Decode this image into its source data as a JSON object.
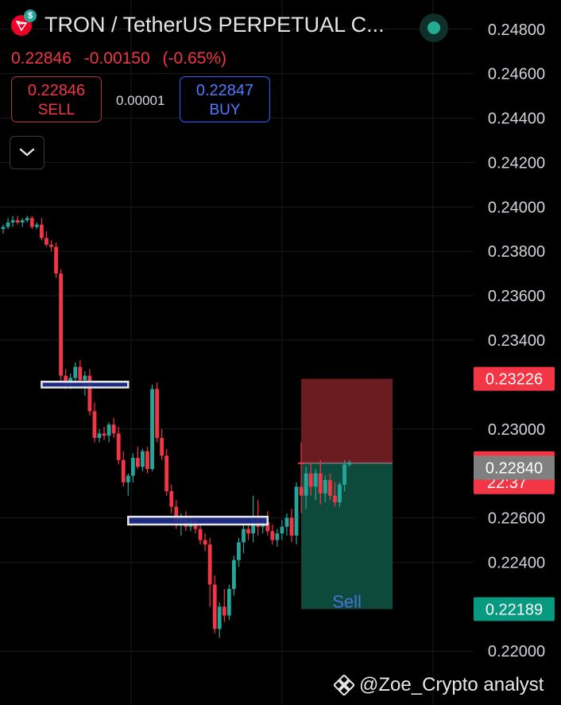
{
  "header": {
    "title": "TRON / TetherUS PERPETUAL C...",
    "coin_badge": "$",
    "last_price": "0.22846",
    "change": "-0.00150",
    "change_pct": "(-0.65%)"
  },
  "trade": {
    "sell_price": "0.22846",
    "sell_label": "SELL",
    "spread": "0.00001",
    "buy_price": "0.22847",
    "buy_label": "BUY"
  },
  "watermark": "@Zoe_Crypto analyst",
  "icons": {
    "coin": "tron-logo-icon",
    "collapse": "chevron-down-icon",
    "status": "market-status-icon",
    "watermark": "binance-logo-icon"
  },
  "colors": {
    "up": "#26a69a",
    "down": "#f23645",
    "stop_zone": "#6b1c21",
    "target_zone": "#0e4a3c",
    "buy_accent": "#2962ff"
  },
  "chart_data": {
    "type": "candlestick",
    "ylim": [
      0.2199,
      0.2481
    ],
    "y_ticks": [
      "0.24800",
      "0.24600",
      "0.24400",
      "0.24200",
      "0.24000",
      "0.23800",
      "0.23600",
      "0.23400",
      "0.23000",
      "0.22600",
      "0.22400",
      "0.22000"
    ],
    "grid": true,
    "candles": [
      [
        0.239,
        0.2392,
        0.2388,
        0.2391
      ],
      [
        0.2391,
        0.2395,
        0.239,
        0.2393
      ],
      [
        0.2393,
        0.2396,
        0.2391,
        0.2394
      ],
      [
        0.2394,
        0.2396,
        0.2392,
        0.2393
      ],
      [
        0.2393,
        0.2395,
        0.2391,
        0.2394
      ],
      [
        0.2394,
        0.2396,
        0.2393,
        0.2395
      ],
      [
        0.2395,
        0.2396,
        0.239,
        0.2391
      ],
      [
        0.2391,
        0.2393,
        0.239,
        0.2392
      ],
      [
        0.2392,
        0.2395,
        0.2385,
        0.2386
      ],
      [
        0.2386,
        0.2389,
        0.2382,
        0.2383
      ],
      [
        0.2383,
        0.2385,
        0.238,
        0.2382
      ],
      [
        0.2382,
        0.2384,
        0.2368,
        0.237
      ],
      [
        0.237,
        0.2372,
        0.232,
        0.2324
      ],
      [
        0.2324,
        0.2327,
        0.2318,
        0.232
      ],
      [
        0.232,
        0.2325,
        0.2318,
        0.2323
      ],
      [
        0.2323,
        0.233,
        0.232,
        0.2328
      ],
      [
        0.2328,
        0.2331,
        0.232,
        0.2322
      ],
      [
        0.2322,
        0.2326,
        0.2315,
        0.2324
      ],
      [
        0.2324,
        0.2327,
        0.2306,
        0.2308
      ],
      [
        0.2308,
        0.2312,
        0.2294,
        0.2296
      ],
      [
        0.2296,
        0.23,
        0.2294,
        0.2298
      ],
      [
        0.2298,
        0.2301,
        0.2295,
        0.2297
      ],
      [
        0.2297,
        0.2303,
        0.2294,
        0.2302
      ],
      [
        0.2302,
        0.2305,
        0.2296,
        0.2298
      ],
      [
        0.2298,
        0.2301,
        0.2284,
        0.2286
      ],
      [
        0.2286,
        0.229,
        0.2274,
        0.2276
      ],
      [
        0.2276,
        0.228,
        0.227,
        0.2279
      ],
      [
        0.2279,
        0.2289,
        0.2276,
        0.2287
      ],
      [
        0.2287,
        0.2292,
        0.2282,
        0.2283
      ],
      [
        0.2283,
        0.2291,
        0.2281,
        0.229
      ],
      [
        0.229,
        0.2292,
        0.228,
        0.2282
      ],
      [
        0.2282,
        0.232,
        0.2281,
        0.2318
      ],
      [
        0.2318,
        0.2321,
        0.2294,
        0.2296
      ],
      [
        0.2296,
        0.23,
        0.2286,
        0.2288
      ],
      [
        0.2288,
        0.2291,
        0.227,
        0.2272
      ],
      [
        0.2272,
        0.2275,
        0.2262,
        0.2265
      ],
      [
        0.2265,
        0.2268,
        0.2255,
        0.2258
      ],
      [
        0.2258,
        0.2262,
        0.2252,
        0.226
      ],
      [
        0.226,
        0.2263,
        0.2254,
        0.2256
      ],
      [
        0.2256,
        0.2261,
        0.2254,
        0.2259
      ],
      [
        0.2259,
        0.2261,
        0.2253,
        0.2255
      ],
      [
        0.2255,
        0.2258,
        0.2248,
        0.225
      ],
      [
        0.225,
        0.2253,
        0.2245,
        0.2248
      ],
      [
        0.2248,
        0.2251,
        0.222,
        0.223
      ],
      [
        0.223,
        0.2234,
        0.2208,
        0.221
      ],
      [
        0.221,
        0.2222,
        0.2206,
        0.222
      ],
      [
        0.222,
        0.2228,
        0.2213,
        0.2216
      ],
      [
        0.2216,
        0.223,
        0.2214,
        0.2228
      ],
      [
        0.2228,
        0.2243,
        0.2225,
        0.2241
      ],
      [
        0.2241,
        0.2251,
        0.2238,
        0.2249
      ],
      [
        0.2249,
        0.2259,
        0.2244,
        0.2255
      ],
      [
        0.2255,
        0.2258,
        0.225,
        0.2253
      ],
      [
        0.2253,
        0.227,
        0.2249,
        0.2258
      ],
      [
        0.2258,
        0.2268,
        0.2252,
        0.2256
      ],
      [
        0.2256,
        0.2261,
        0.2253,
        0.2258
      ],
      [
        0.2258,
        0.2263,
        0.2252,
        0.2254
      ],
      [
        0.2254,
        0.2257,
        0.2248,
        0.225
      ],
      [
        0.225,
        0.2255,
        0.2247,
        0.2253
      ],
      [
        0.2253,
        0.2259,
        0.225,
        0.2256
      ],
      [
        0.2256,
        0.2262,
        0.2252,
        0.226
      ],
      [
        0.226,
        0.2264,
        0.2249,
        0.2252
      ],
      [
        0.2252,
        0.2276,
        0.2248,
        0.2274
      ],
      [
        0.2274,
        0.2294,
        0.2262,
        0.227
      ],
      [
        0.227,
        0.2283,
        0.2264,
        0.228
      ],
      [
        0.228,
        0.2285,
        0.227,
        0.2274
      ],
      [
        0.2274,
        0.2282,
        0.2268,
        0.228
      ],
      [
        0.228,
        0.2286,
        0.2266,
        0.2271
      ],
      [
        0.2271,
        0.2279,
        0.2267,
        0.2277
      ],
      [
        0.2277,
        0.228,
        0.2268,
        0.227
      ],
      [
        0.227,
        0.2276,
        0.2265,
        0.2267
      ],
      [
        0.2267,
        0.2276,
        0.2265,
        0.2275
      ],
      [
        0.2275,
        0.2286,
        0.2272,
        0.2284
      ],
      [
        0.2284,
        0.2286,
        0.2283,
        0.2285
      ]
    ],
    "zones": [
      {
        "from": 0.23187,
        "to": 0.23213,
        "x_from": 8,
        "x_to": 26
      },
      {
        "from": 0.2257,
        "to": 0.22605,
        "x_from": 26,
        "x_to": 55
      }
    ],
    "position": {
      "stop": 0.23226,
      "entry": 0.22846,
      "target": 0.22189,
      "label": "Sell",
      "x_from": 62,
      "x_to": 81
    },
    "price_labels": [
      {
        "value": 0.23226,
        "text": "0.23226",
        "color": "#f23645"
      },
      {
        "value": 0.22846,
        "text": "0.22846",
        "sub": "22:37",
        "color": "#f23645"
      },
      {
        "value": 0.2284,
        "text": "0.22840",
        "color": "#808080"
      },
      {
        "value": 0.22189,
        "text": "0.22189",
        "color": "#089981"
      }
    ]
  }
}
